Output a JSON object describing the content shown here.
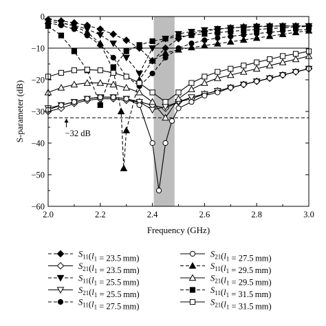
{
  "chart_data": {
    "type": "line",
    "xlabel": "Frequency (GHz)",
    "ylabel": "S-parameter (dB)",
    "xlim": [
      2.0,
      3.0
    ],
    "ylim": [
      -60,
      0
    ],
    "xticks": [
      "2.0",
      "2.2",
      "2.4",
      "2.6",
      "2.8",
      "3.0"
    ],
    "yticks": [
      "0",
      "−10",
      "−20",
      "−30",
      "−40",
      "−50",
      "−60"
    ],
    "band": [
      2.405,
      2.485
    ],
    "hline_solid": -10,
    "hline_dashed": -32,
    "annotation": {
      "text": "−32 dB",
      "x": 2.07,
      "y": -32
    },
    "legend_columns": 2,
    "series": [
      {
        "name": "S11(l1 = 23.5 mm)",
        "param": "S",
        "sub": "11",
        "l": "23.5",
        "marker": "diamond",
        "fill": "filled",
        "dash": "dashed",
        "x": [
          2.0,
          2.05,
          2.1,
          2.15,
          2.2,
          2.25,
          2.3,
          2.35,
          2.4,
          2.45,
          2.5,
          2.55,
          2.6,
          2.65,
          2.7,
          2.75,
          2.8,
          2.85,
          2.9,
          2.95,
          3.0
        ],
        "y": [
          -1.0,
          -1.4,
          -2.0,
          -2.8,
          -4.0,
          -5.6,
          -7.5,
          -10.0,
          -14.0,
          -10.0,
          -7.0,
          -5.5,
          -4.6,
          -4.0,
          -3.6,
          -3.3,
          -3.1,
          -3.0,
          -3.0,
          -3.0,
          -3.0
        ]
      },
      {
        "name": "S21(l1 = 23.5 mm)",
        "param": "S",
        "sub": "21",
        "l": "23.5",
        "marker": "diamond",
        "fill": "open",
        "dash": "solid",
        "x": [
          2.0,
          2.05,
          2.1,
          2.15,
          2.2,
          2.25,
          2.3,
          2.35,
          2.4,
          2.45,
          2.5,
          2.55,
          2.6,
          2.65,
          2.7,
          2.75,
          2.8,
          2.85,
          2.9,
          2.95,
          3.0
        ],
        "y": [
          -30,
          -29,
          -27.5,
          -26.5,
          -26,
          -26,
          -26.5,
          -27,
          -28,
          -29,
          -27,
          -26,
          -24.5,
          -23.5,
          -22.5,
          -21.5,
          -20.5,
          -19.5,
          -18.5,
          -17.5,
          -16.5
        ]
      },
      {
        "name": "S11(l1 = 25.5 mm)",
        "param": "S",
        "sub": "11",
        "l": "25.5",
        "marker": "triangle-down",
        "fill": "filled",
        "dash": "dashed",
        "x": [
          2.0,
          2.05,
          2.1,
          2.15,
          2.2,
          2.25,
          2.3,
          2.35,
          2.4,
          2.45,
          2.5,
          2.55,
          2.6,
          2.65,
          2.7,
          2.75,
          2.8,
          2.85,
          2.9,
          2.95,
          3.0
        ],
        "y": [
          -1.5,
          -2.0,
          -2.8,
          -4.0,
          -5.8,
          -8.5,
          -13.0,
          -18.0,
          -10.0,
          -7.0,
          -5.5,
          -4.8,
          -4.3,
          -3.9,
          -3.6,
          -3.4,
          -3.2,
          -3.1,
          -3.0,
          -3.0,
          -3.0
        ]
      },
      {
        "name": "S21(l1 = 25.5 mm)",
        "param": "S",
        "sub": "21",
        "l": "25.5",
        "marker": "triangle-down",
        "fill": "open",
        "dash": "solid",
        "x": [
          2.0,
          2.05,
          2.1,
          2.15,
          2.2,
          2.25,
          2.3,
          2.35,
          2.4,
          2.45,
          2.5,
          2.55,
          2.6,
          2.65,
          2.7,
          2.75,
          2.8,
          2.85,
          2.9,
          2.95,
          3.0
        ],
        "y": [
          -29,
          -28,
          -27,
          -26,
          -25.5,
          -25.5,
          -26,
          -27,
          -29.5,
          -28.5,
          -27,
          -25.5,
          -24.5,
          -23.5,
          -22.5,
          -21.5,
          -20.5,
          -19.5,
          -18.5,
          -17.5,
          -16.5
        ]
      },
      {
        "name": "S11(l1 = 27.5 mm)",
        "param": "S",
        "sub": "11",
        "l": "27.5",
        "marker": "circle",
        "fill": "filled",
        "dash": "dashed",
        "x": [
          2.0,
          2.05,
          2.1,
          2.15,
          2.2,
          2.25,
          2.3,
          2.35,
          2.4,
          2.45,
          2.5,
          2.55,
          2.6,
          2.65,
          2.7,
          2.75,
          2.8,
          2.85,
          2.9,
          2.95,
          3.0
        ],
        "y": [
          -2.0,
          -2.8,
          -4.0,
          -6.0,
          -9.0,
          -13.0,
          -19.0,
          -22.0,
          -18.0,
          -13.0,
          -10.0,
          -8.5,
          -7.5,
          -6.8,
          -6.3,
          -5.8,
          -5.4,
          -5.0,
          -4.6,
          -4.3,
          -4.0
        ]
      },
      {
        "name": "S21(l1 = 27.5 mm)",
        "param": "S",
        "sub": "21",
        "l": "27.5",
        "marker": "circle",
        "fill": "open",
        "dash": "solid",
        "x": [
          2.0,
          2.05,
          2.1,
          2.15,
          2.2,
          2.25,
          2.3,
          2.35,
          2.4,
          2.425,
          2.45,
          2.475,
          2.5,
          2.55,
          2.6,
          2.65,
          2.7,
          2.75,
          2.8,
          2.85,
          2.9,
          2.95,
          3.0
        ],
        "y": [
          -29.5,
          -28,
          -27,
          -26,
          -25.5,
          -25.5,
          -26,
          -28,
          -40,
          -55,
          -40,
          -33,
          -29,
          -27,
          -25,
          -24,
          -22.5,
          -21.5,
          -20.5,
          -19.5,
          -18.5,
          -17.5,
          -16.5
        ]
      },
      {
        "name": "S11(l1 = 29.5 mm)",
        "param": "S",
        "sub": "11",
        "l": "29.5",
        "marker": "triangle-up",
        "fill": "filled",
        "dash": "dashed",
        "x": [
          2.0,
          2.05,
          2.1,
          2.15,
          2.2,
          2.25,
          2.28,
          2.29,
          2.3,
          2.35,
          2.4,
          2.45,
          2.5,
          2.55,
          2.6,
          2.65,
          2.7,
          2.75,
          2.8,
          2.85,
          2.9,
          2.95,
          3.0
        ],
        "y": [
          -1.5,
          -2.0,
          -3.0,
          -5.0,
          -8.5,
          -17.0,
          -30.0,
          -48.0,
          -36.0,
          -20.0,
          -14.0,
          -11.5,
          -10.5,
          -9.8,
          -9.2,
          -8.6,
          -8.0,
          -7.4,
          -6.8,
          -6.2,
          -5.6,
          -5.0,
          -4.5
        ]
      },
      {
        "name": "S21(l1 = 29.5 mm)",
        "param": "S",
        "sub": "21",
        "l": "29.5",
        "marker": "triangle-up",
        "fill": "open",
        "dash": "solid",
        "x": [
          2.0,
          2.05,
          2.1,
          2.15,
          2.2,
          2.25,
          2.3,
          2.35,
          2.4,
          2.45,
          2.5,
          2.55,
          2.6,
          2.65,
          2.7,
          2.75,
          2.8,
          2.85,
          2.9,
          2.95,
          3.0
        ],
        "y": [
          -24,
          -22.5,
          -21.5,
          -21,
          -21,
          -21.5,
          -22.5,
          -24,
          -27,
          -32,
          -26,
          -23,
          -21,
          -19.5,
          -18.5,
          -17.5,
          -16.5,
          -15.5,
          -14.5,
          -13.5,
          -12.5
        ]
      },
      {
        "name": "S11(l1 = 31.5 mm)",
        "param": "S",
        "sub": "11",
        "l": "31.5",
        "marker": "square",
        "fill": "filled",
        "dash": "dashed",
        "x": [
          2.0,
          2.05,
          2.1,
          2.15,
          2.2,
          2.25,
          2.3,
          2.35,
          2.4,
          2.45,
          2.5,
          2.55,
          2.6,
          2.65,
          2.7,
          2.75,
          2.8,
          2.85,
          2.9,
          2.95,
          3.0
        ],
        "y": [
          -3.0,
          -6.0,
          -11.0,
          -17.0,
          -28.0,
          -16.0,
          -11.0,
          -9.0,
          -7.8,
          -7.0,
          -6.4,
          -5.9,
          -5.5,
          -5.1,
          -4.7,
          -4.4,
          -4.1,
          -3.8,
          -3.6,
          -3.3,
          -3.1
        ]
      },
      {
        "name": "S21(l1 = 31.5 mm)",
        "param": "S",
        "sub": "21",
        "l": "31.5",
        "marker": "square",
        "fill": "open",
        "dash": "solid",
        "x": [
          2.0,
          2.05,
          2.1,
          2.15,
          2.2,
          2.25,
          2.3,
          2.35,
          2.4,
          2.45,
          2.5,
          2.55,
          2.6,
          2.65,
          2.7,
          2.75,
          2.8,
          2.85,
          2.9,
          2.95,
          3.0
        ],
        "y": [
          -19,
          -17.8,
          -17,
          -16.8,
          -17,
          -17.8,
          -19,
          -21,
          -24,
          -27,
          -24,
          -21,
          -19,
          -17.5,
          -16.5,
          -15.5,
          -14.5,
          -13.5,
          -12.5,
          -11.8,
          -11
        ]
      }
    ]
  }
}
